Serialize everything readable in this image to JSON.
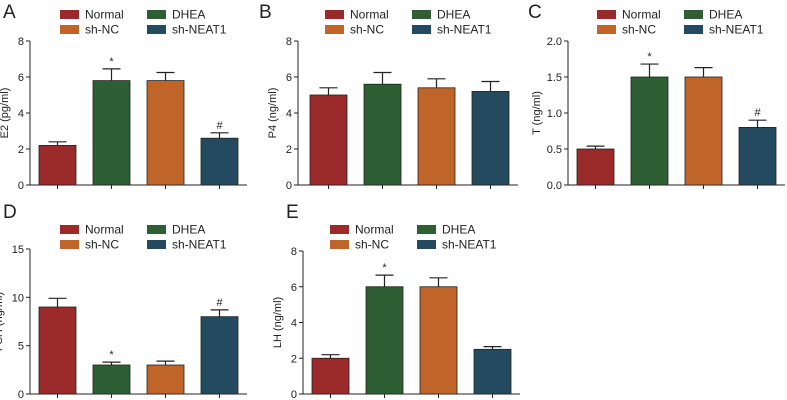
{
  "figure": {
    "legend": [
      {
        "name": "Normal",
        "color": "#9b2a2b"
      },
      {
        "name": "DHEA",
        "color": "#2d5e34"
      },
      {
        "name": "sh-NC",
        "color": "#c0652a"
      },
      {
        "name": "sh-NEAT1",
        "color": "#234a5e"
      }
    ]
  },
  "chart_data": [
    {
      "panel": "A",
      "type": "bar",
      "title": "",
      "xlabel": "",
      "ylabel": "E2 (pg/ml)",
      "categories": [
        "Normal",
        "DHEA",
        "sh-NC",
        "sh-NEAT1"
      ],
      "values": [
        2.2,
        5.8,
        5.8,
        2.6
      ],
      "errors": [
        0.2,
        0.65,
        0.45,
        0.3
      ],
      "annotations": [
        "",
        "*",
        "",
        "#"
      ],
      "ylim": [
        0,
        8
      ],
      "yticks": [
        0,
        2,
        4,
        6,
        8
      ],
      "grid": false
    },
    {
      "panel": "B",
      "type": "bar",
      "title": "",
      "xlabel": "",
      "ylabel": "P4 (ng/ml)",
      "categories": [
        "Normal",
        "DHEA",
        "sh-NC",
        "sh-NEAT1"
      ],
      "values": [
        5.0,
        5.6,
        5.4,
        5.2
      ],
      "errors": [
        0.4,
        0.65,
        0.5,
        0.55
      ],
      "annotations": [
        "",
        "",
        "",
        ""
      ],
      "ylim": [
        0,
        8
      ],
      "yticks": [
        0,
        2,
        4,
        6,
        8
      ],
      "grid": false
    },
    {
      "panel": "C",
      "type": "bar",
      "title": "",
      "xlabel": "",
      "ylabel": "T (ng/ml)",
      "categories": [
        "Normal",
        "DHEA",
        "sh-NC",
        "sh-NEAT1"
      ],
      "values": [
        0.5,
        1.5,
        1.5,
        0.8
      ],
      "errors": [
        0.04,
        0.18,
        0.13,
        0.1
      ],
      "annotations": [
        "",
        "*",
        "",
        "#"
      ],
      "ylim": [
        0,
        2.0
      ],
      "yticks": [
        0,
        0.5,
        1.0,
        1.5,
        2.0
      ],
      "grid": false
    },
    {
      "panel": "D",
      "type": "bar",
      "title": "",
      "xlabel": "",
      "ylabel": "FSH (ng/ml)",
      "categories": [
        "Normal",
        "DHEA",
        "sh-NC",
        "sh-NEAT1"
      ],
      "values": [
        9.0,
        3.0,
        3.0,
        8.0
      ],
      "errors": [
        0.9,
        0.3,
        0.4,
        0.7
      ],
      "annotations": [
        "",
        "*",
        "",
        "#"
      ],
      "ylim": [
        0,
        15
      ],
      "yticks": [
        0,
        5,
        10,
        15
      ],
      "grid": false
    },
    {
      "panel": "E",
      "type": "bar",
      "title": "",
      "xlabel": "",
      "ylabel": "LH (ng/ml)",
      "categories": [
        "Normal",
        "DHEA",
        "sh-NC",
        "sh-NEAT1"
      ],
      "values": [
        2.0,
        6.0,
        6.0,
        2.5
      ],
      "errors": [
        0.2,
        0.65,
        0.5,
        0.15
      ],
      "annotations": [
        "",
        "*",
        "",
        ""
      ],
      "ylim": [
        0,
        8
      ],
      "yticks": [
        0,
        2,
        4,
        6,
        8
      ],
      "grid": false
    }
  ]
}
